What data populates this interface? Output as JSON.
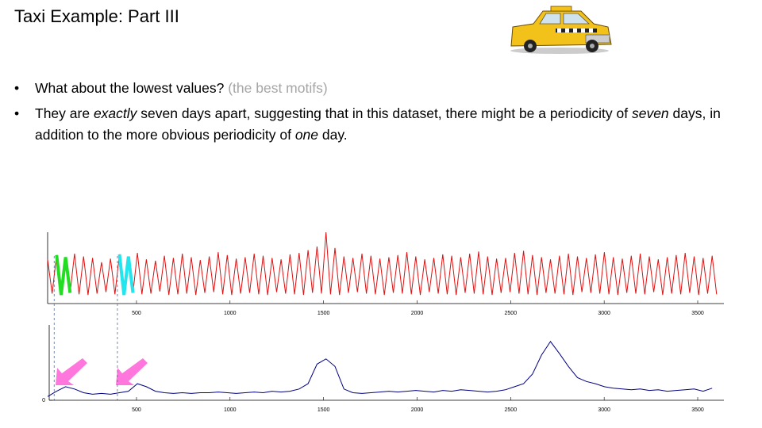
{
  "title": "Taxi Example: Part III",
  "bullets": [
    {
      "parts": [
        "What about the lowest values?",
        " (the best motifs)"
      ]
    },
    {
      "parts": [
        "They are ",
        "exactly",
        " seven days apart, suggesting that in this dataset, there might be a periodicity of ",
        "seven",
        " days, in addition to the more obvious periodicity of ",
        "one",
        " day."
      ]
    }
  ],
  "charts": [
    {
      "type": "line",
      "color": "#dd1111",
      "xlim": [
        25,
        3640
      ],
      "ylim": [
        0,
        100
      ],
      "xticks": [
        500,
        1000,
        1500,
        2000,
        2500,
        3000,
        3500
      ],
      "motif_length": 90,
      "motifs": [
        {
          "x": 60,
          "color": "#22dd22"
        },
        {
          "x": 398,
          "color": "#22e5ee"
        }
      ],
      "x": [
        25,
        49,
        73,
        97,
        121,
        145,
        169,
        193,
        217,
        241,
        265,
        289,
        313,
        337,
        361,
        385,
        409,
        433,
        457,
        481,
        505,
        529,
        553,
        577,
        601,
        625,
        649,
        673,
        697,
        721,
        745,
        769,
        793,
        817,
        841,
        865,
        889,
        913,
        937,
        961,
        985,
        1009,
        1033,
        1057,
        1081,
        1105,
        1129,
        1153,
        1177,
        1201,
        1225,
        1249,
        1273,
        1297,
        1321,
        1345,
        1369,
        1393,
        1417,
        1441,
        1465,
        1489,
        1513,
        1537,
        1561,
        1585,
        1609,
        1633,
        1657,
        1681,
        1705,
        1729,
        1753,
        1777,
        1801,
        1825,
        1849,
        1873,
        1897,
        1921,
        1945,
        1969,
        1993,
        2017,
        2041,
        2065,
        2089,
        2113,
        2137,
        2161,
        2185,
        2209,
        2233,
        2257,
        2281,
        2305,
        2329,
        2353,
        2377,
        2401,
        2425,
        2449,
        2473,
        2497,
        2521,
        2545,
        2569,
        2593,
        2617,
        2641,
        2665,
        2689,
        2713,
        2737,
        2761,
        2785,
        2809,
        2833,
        2857,
        2881,
        2905,
        2929,
        2953,
        2977,
        3001,
        3025,
        3049,
        3073,
        3097,
        3121,
        3145,
        3169,
        3193,
        3217,
        3241,
        3265,
        3289,
        3313,
        3337,
        3361,
        3385,
        3409,
        3433,
        3457,
        3481,
        3505,
        3529,
        3553,
        3577,
        3601
      ],
      "values": [
        62,
        14,
        68,
        12,
        65,
        15,
        70,
        13,
        66,
        12,
        64,
        14,
        58,
        16,
        63,
        13,
        69,
        12,
        66,
        15,
        71,
        13,
        62,
        14,
        60,
        17,
        67,
        12,
        64,
        13,
        70,
        14,
        65,
        12,
        61,
        15,
        66,
        16,
        72,
        13,
        68,
        12,
        63,
        14,
        65,
        15,
        70,
        13,
        67,
        12,
        64,
        16,
        62,
        14,
        69,
        13,
        71,
        12,
        75,
        15,
        80,
        14,
        100,
        13,
        78,
        12,
        66,
        15,
        64,
        16,
        70,
        14,
        67,
        13,
        63,
        12,
        65,
        15,
        68,
        14,
        72,
        13,
        66,
        12,
        62,
        16,
        64,
        14,
        69,
        13,
        67,
        12,
        65,
        15,
        70,
        14,
        73,
        13,
        66,
        12,
        63,
        15,
        64,
        16,
        71,
        14,
        74,
        13,
        68,
        12,
        65,
        15,
        62,
        14,
        67,
        13,
        70,
        12,
        66,
        16,
        64,
        15,
        69,
        14,
        72,
        13,
        65,
        12,
        63,
        15,
        67,
        14,
        70,
        13,
        66,
        16,
        62,
        12,
        65,
        14,
        68,
        13,
        71,
        15,
        66,
        12,
        64,
        14,
        67,
        13
      ]
    },
    {
      "type": "line",
      "color": "#000080",
      "xlim": [
        25,
        3640
      ],
      "ylim": [
        0,
        100
      ],
      "xticks": [
        500,
        1000,
        1500,
        2000,
        2500,
        3000,
        3500
      ],
      "yticks": [
        0
      ],
      "x": [
        25,
        73,
        121,
        169,
        217,
        265,
        313,
        361,
        409,
        457,
        505,
        553,
        601,
        649,
        697,
        745,
        793,
        841,
        889,
        937,
        985,
        1033,
        1081,
        1129,
        1177,
        1225,
        1273,
        1321,
        1369,
        1417,
        1465,
        1513,
        1561,
        1609,
        1657,
        1705,
        1753,
        1801,
        1849,
        1897,
        1945,
        1993,
        2041,
        2089,
        2137,
        2185,
        2233,
        2281,
        2329,
        2377,
        2425,
        2473,
        2521,
        2569,
        2617,
        2665,
        2713,
        2761,
        2809,
        2857,
        2905,
        2953,
        3001,
        3049,
        3097,
        3145,
        3193,
        3241,
        3289,
        3337,
        3385,
        3433,
        3481,
        3529,
        3577
      ],
      "values": [
        5,
        12,
        18,
        15,
        10,
        8,
        9,
        8,
        10,
        12,
        22,
        18,
        12,
        10,
        9,
        10,
        9,
        10,
        10,
        11,
        10,
        9,
        10,
        11,
        10,
        12,
        11,
        12,
        15,
        22,
        48,
        55,
        45,
        15,
        10,
        9,
        10,
        11,
        12,
        11,
        12,
        13,
        12,
        11,
        13,
        12,
        14,
        13,
        12,
        11,
        12,
        14,
        18,
        22,
        35,
        60,
        78,
        62,
        45,
        30,
        25,
        22,
        18,
        16,
        15,
        14,
        15,
        13,
        14,
        12,
        13,
        14,
        15,
        12,
        16
      ]
    }
  ]
}
